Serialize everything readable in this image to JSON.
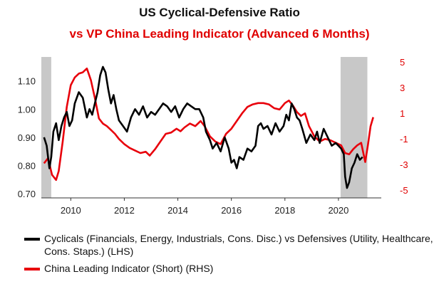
{
  "chart_data": {
    "type": "line",
    "title": "US Cyclical-Defensive Ratio",
    "subtitle": "vs VP China Leading Indicator (Advanced 6 Months)",
    "colors": {
      "cyclical": "#000000",
      "china": "#e8000b",
      "shade": "#c8c8c8",
      "right_axis": "#e00000"
    },
    "x_ticks": [
      "2010",
      "2012",
      "2014",
      "2016",
      "2018",
      "2020"
    ],
    "x_tick_values": [
      2010,
      2012,
      2014,
      2016,
      2018,
      2020
    ],
    "xlim": [
      2008.9,
      2021.6
    ],
    "y_left": {
      "ticks": [
        "0.70",
        "0.80",
        "0.90",
        "1.00",
        "1.10"
      ],
      "values": [
        0.7,
        0.8,
        0.9,
        1.0,
        1.1
      ],
      "range": [
        0.685,
        1.185
      ]
    },
    "y_right": {
      "ticks": [
        "-5",
        "-3",
        "-1",
        "1",
        "3",
        "5"
      ],
      "values": [
        -5,
        -3,
        -1,
        1,
        3,
        5
      ],
      "range": [
        -5.6,
        5.4
      ]
    },
    "shaded_periods": [
      [
        2008.9,
        2009.27
      ],
      [
        2020.08,
        2021.08
      ]
    ],
    "series": [
      {
        "name": "Cyclicals (Financials, Energy, Industrials, Cons. Disc.) vs Defensives (Utility, Healthcare, Cons. Staps.) (LHS)",
        "axis": "left",
        "x": [
          2009.0,
          2009.1,
          2009.2,
          2009.27,
          2009.35,
          2009.45,
          2009.55,
          2009.65,
          2009.75,
          2009.85,
          2009.95,
          2010.05,
          2010.15,
          2010.3,
          2010.45,
          2010.6,
          2010.7,
          2010.8,
          2010.9,
          2011.0,
          2011.1,
          2011.2,
          2011.3,
          2011.4,
          2011.5,
          2011.6,
          2011.7,
          2011.8,
          2011.95,
          2012.1,
          2012.25,
          2012.4,
          2012.55,
          2012.7,
          2012.85,
          2013.0,
          2013.15,
          2013.3,
          2013.45,
          2013.6,
          2013.75,
          2013.9,
          2014.05,
          2014.2,
          2014.35,
          2014.5,
          2014.65,
          2014.8,
          2014.95,
          2015.05,
          2015.2,
          2015.3,
          2015.45,
          2015.6,
          2015.75,
          2015.9,
          2016.0,
          2016.1,
          2016.2,
          2016.3,
          2016.45,
          2016.6,
          2016.75,
          2016.9,
          2017.0,
          2017.1,
          2017.2,
          2017.35,
          2017.5,
          2017.65,
          2017.8,
          2017.95,
          2018.05,
          2018.15,
          2018.25,
          2018.35,
          2018.45,
          2018.55,
          2018.65,
          2018.8,
          2018.95,
          2019.1,
          2019.2,
          2019.3,
          2019.45,
          2019.6,
          2019.75,
          2019.9,
          2020.0,
          2020.1,
          2020.2,
          2020.25,
          2020.32,
          2020.4,
          2020.5,
          2020.6,
          2020.7,
          2020.8,
          2020.9
        ],
        "values": [
          0.9,
          0.87,
          0.79,
          0.83,
          0.92,
          0.95,
          0.89,
          0.94,
          0.97,
          0.99,
          0.94,
          0.96,
          1.02,
          1.06,
          1.04,
          0.97,
          1.0,
          0.98,
          1.02,
          1.06,
          1.12,
          1.15,
          1.13,
          1.07,
          1.02,
          1.05,
          1.0,
          0.96,
          0.94,
          0.92,
          0.97,
          1.0,
          0.98,
          1.01,
          0.97,
          0.99,
          0.98,
          1.0,
          1.02,
          1.01,
          0.99,
          1.01,
          0.97,
          1.0,
          1.02,
          1.01,
          1.0,
          1.0,
          0.97,
          0.92,
          0.89,
          0.86,
          0.88,
          0.85,
          0.9,
          0.86,
          0.81,
          0.82,
          0.79,
          0.83,
          0.82,
          0.86,
          0.85,
          0.87,
          0.94,
          0.95,
          0.93,
          0.94,
          0.91,
          0.95,
          0.92,
          0.94,
          0.98,
          0.96,
          1.02,
          1.0,
          0.97,
          0.96,
          0.93,
          0.88,
          0.91,
          0.89,
          0.92,
          0.88,
          0.93,
          0.9,
          0.87,
          0.88,
          0.87,
          0.86,
          0.84,
          0.76,
          0.72,
          0.74,
          0.79,
          0.81,
          0.84,
          0.82,
          0.83
        ]
      },
      {
        "name": "China Leading Indicator (Short) (RHS)",
        "axis": "right",
        "x": [
          2009.0,
          2009.15,
          2009.3,
          2009.45,
          2009.55,
          2009.7,
          2009.85,
          2010.0,
          2010.15,
          2010.3,
          2010.45,
          2010.6,
          2010.75,
          2010.9,
          2011.05,
          2011.2,
          2011.35,
          2011.5,
          2011.65,
          2011.8,
          2012.0,
          2012.2,
          2012.4,
          2012.6,
          2012.8,
          2012.95,
          2013.15,
          2013.35,
          2013.55,
          2013.75,
          2013.95,
          2014.1,
          2014.25,
          2014.45,
          2014.65,
          2014.85,
          2015.0,
          2015.2,
          2015.4,
          2015.6,
          2015.8,
          2016.0,
          2016.2,
          2016.4,
          2016.6,
          2016.8,
          2017.0,
          2017.2,
          2017.4,
          2017.6,
          2017.8,
          2018.0,
          2018.15,
          2018.3,
          2018.45,
          2018.6,
          2018.75,
          2018.9,
          2019.1,
          2019.3,
          2019.5,
          2019.7,
          2019.9,
          2020.1,
          2020.25,
          2020.4,
          2020.55,
          2020.7,
          2020.85,
          2021.0,
          2021.1,
          2021.2,
          2021.3
        ],
        "values": [
          -2.9,
          -2.5,
          -3.8,
          -4.2,
          -3.5,
          -1.2,
          1.5,
          3.2,
          3.8,
          4.1,
          4.2,
          4.5,
          3.6,
          2.2,
          0.6,
          0.2,
          0.0,
          -0.3,
          -0.6,
          -1.0,
          -1.4,
          -1.7,
          -1.9,
          -2.1,
          -2.0,
          -2.3,
          -1.8,
          -1.2,
          -0.6,
          -0.5,
          -0.2,
          -0.4,
          -0.1,
          0.2,
          0.0,
          0.4,
          0.0,
          -0.8,
          -1.2,
          -1.4,
          -0.6,
          -0.2,
          0.4,
          1.0,
          1.5,
          1.7,
          1.8,
          1.8,
          1.7,
          1.4,
          1.3,
          1.8,
          2.0,
          1.6,
          1.1,
          0.8,
          1.0,
          0.0,
          -0.8,
          -1.2,
          -1.0,
          -1.1,
          -1.3,
          -1.5,
          -2.1,
          -2.2,
          -1.8,
          -1.5,
          -1.3,
          -2.8,
          -1.5,
          0.0,
          0.7
        ]
      }
    ],
    "legend": [
      {
        "label": "Cyclicals (Financials, Energy, Industrials, Cons. Disc.) vs Defensives (Utility, Healthcare, Cons. Staps.) (LHS)",
        "color": "#000000"
      },
      {
        "label": "China Leading Indicator (Short) (RHS)",
        "color": "#e8000b"
      }
    ],
    "legend_position": "bottom",
    "grid": false
  }
}
